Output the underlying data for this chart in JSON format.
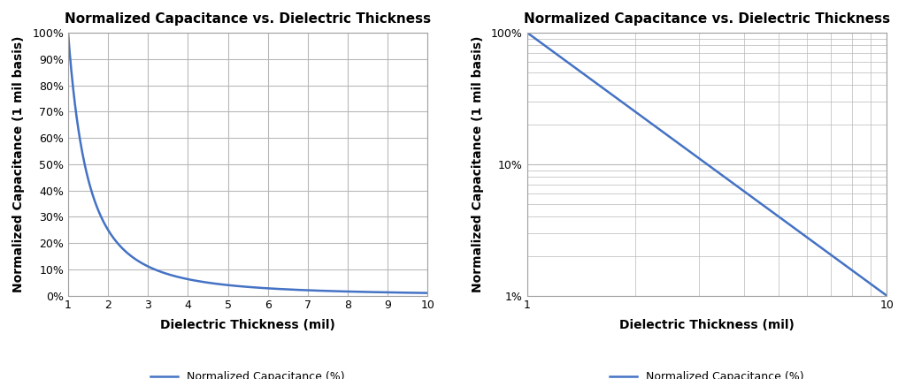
{
  "title": "Normalized Capacitance vs. Dielectric Thickness",
  "xlabel": "Dielectric Thickness (mil)",
  "ylabel": "Normalized Capacitance (1 mil basis)",
  "legend_label": "Normalized Capacitance (%)",
  "line_color": "#4472C4",
  "line_width": 1.8,
  "background_color": "#ffffff",
  "plot_bg_color": "#ffffff",
  "grid_color": "#b8b8b8",
  "x_min": 1,
  "x_max": 10,
  "linear_ylim": [
    0,
    100
  ],
  "linear_yticks": [
    0,
    10,
    20,
    30,
    40,
    50,
    60,
    70,
    80,
    90,
    100
  ],
  "linear_xticks": [
    1,
    2,
    3,
    4,
    5,
    6,
    7,
    8,
    9,
    10
  ],
  "log_ylim": [
    1,
    100
  ],
  "log_ytick_vals": [
    1,
    10,
    100
  ],
  "log_ytick_labels": [
    "1%",
    "10%",
    "100%"
  ],
  "log_xtick_vals": [
    1,
    10
  ],
  "log_xtick_labels": [
    "1",
    "10"
  ],
  "title_fontsize": 11,
  "label_fontsize": 10,
  "tick_fontsize": 9,
  "legend_fontsize": 9
}
